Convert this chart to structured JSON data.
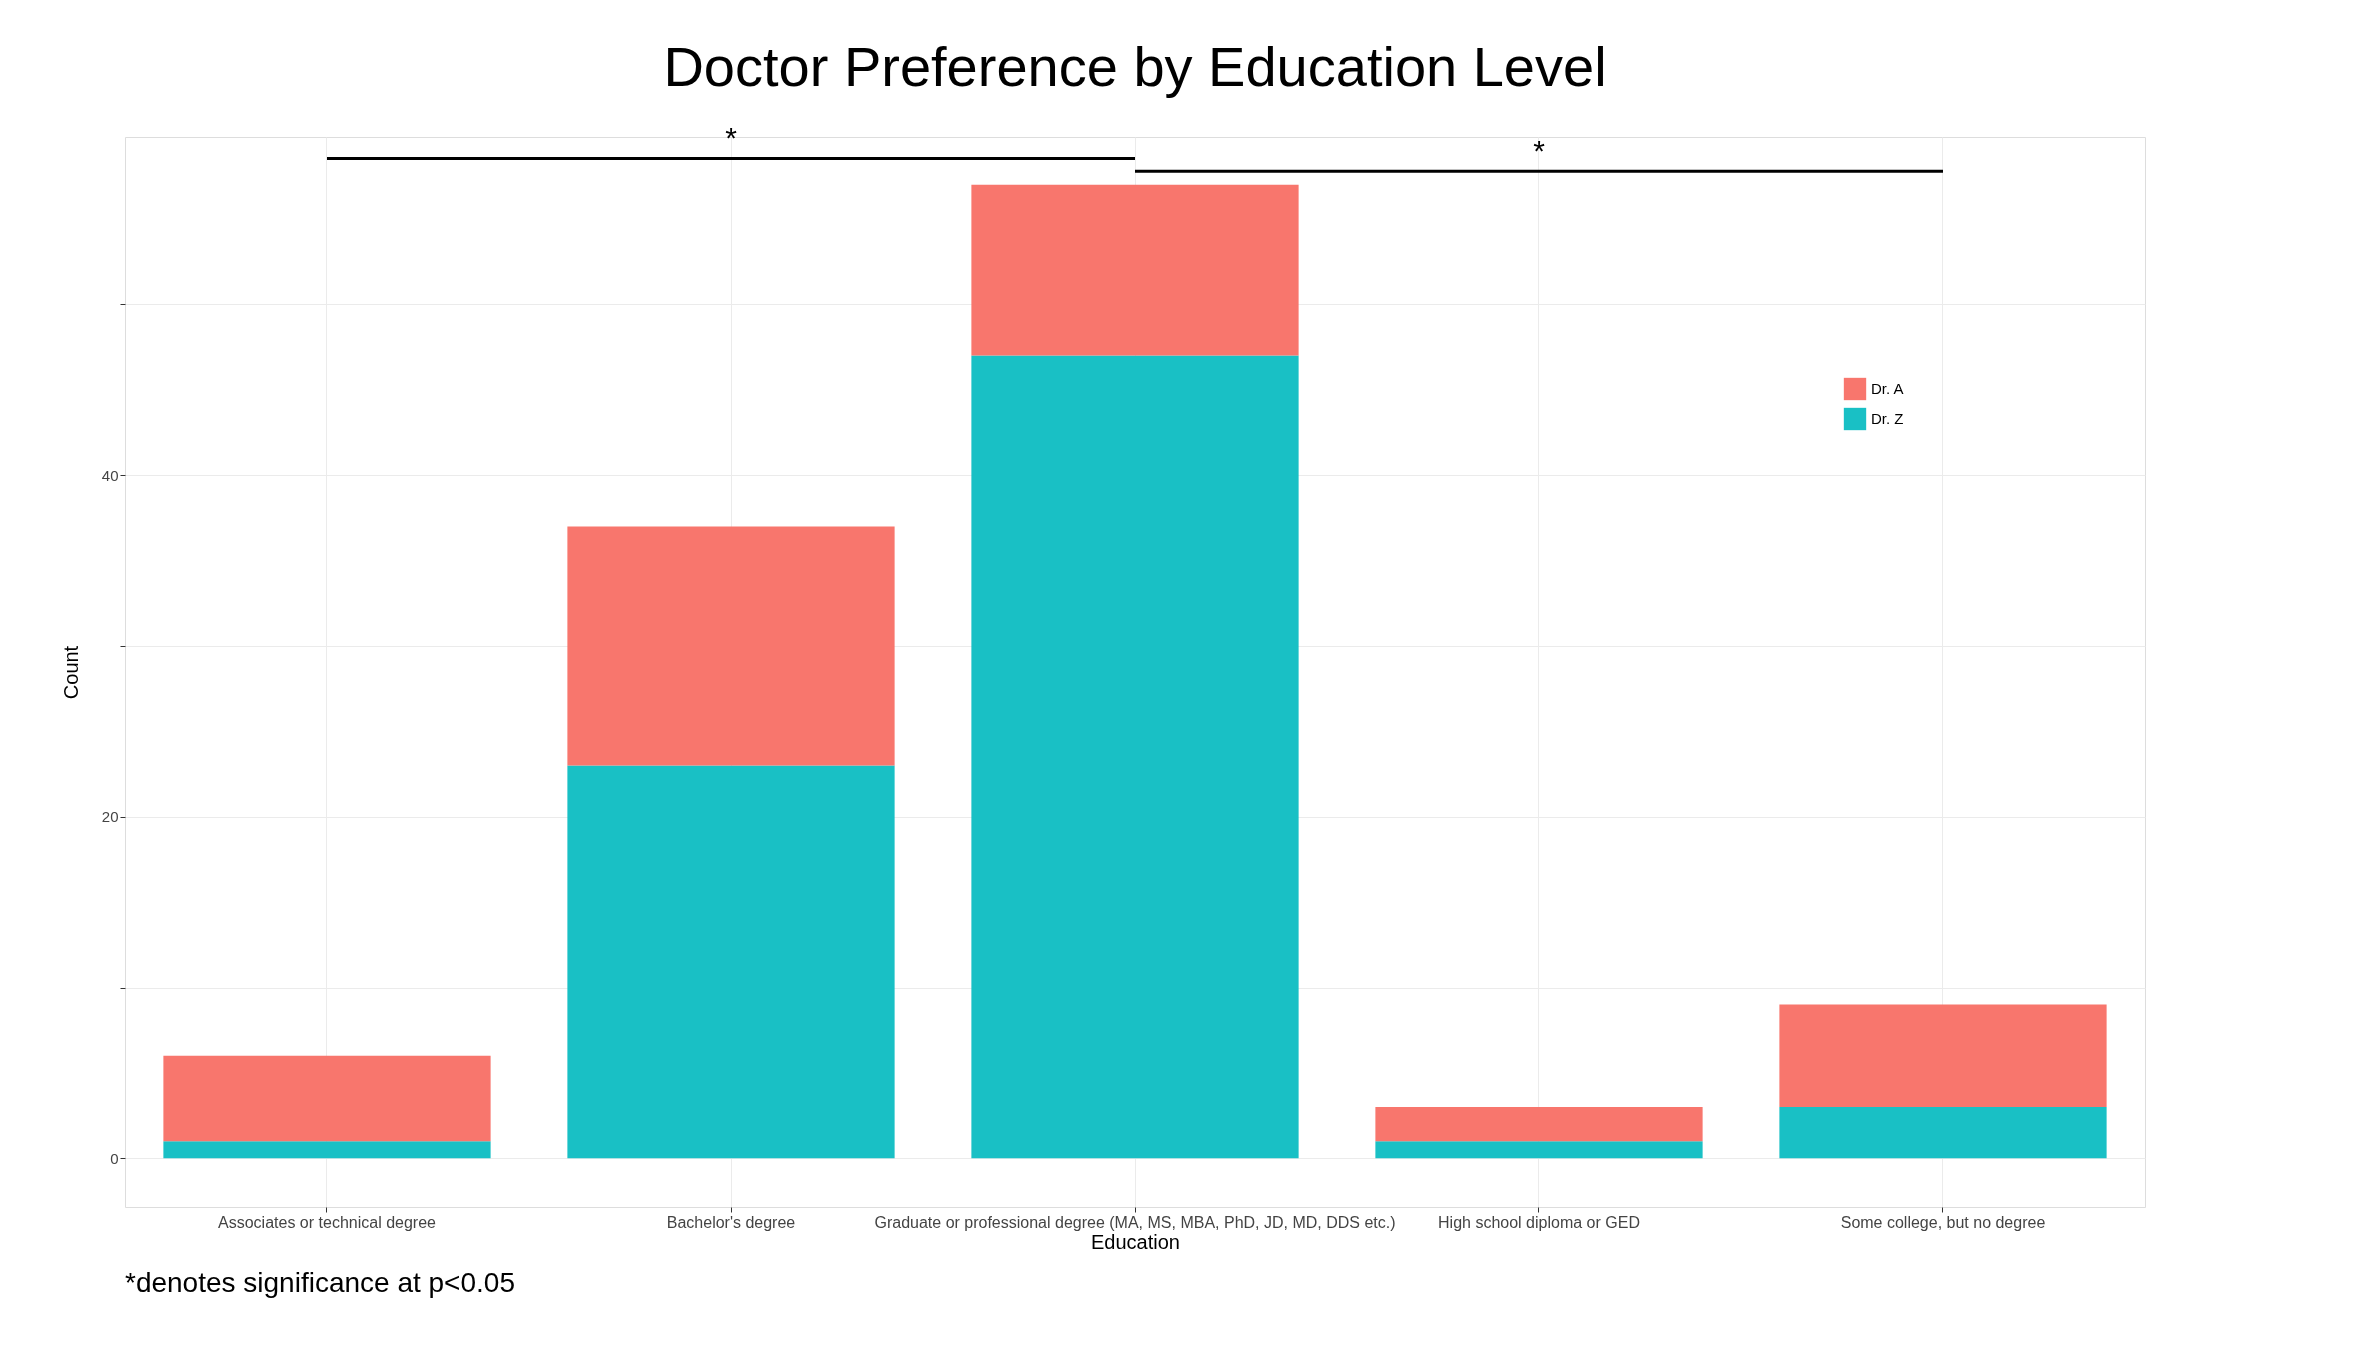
{
  "chart_data": {
    "type": "bar",
    "title": "Doctor Preference by Education Level",
    "xlabel": "Education",
    "ylabel": "Count",
    "categories": [
      "Associates or technical degree",
      "Bachelor's degree",
      "Graduate or professional degree (MA, MS, MBA, PhD, JD, MD, DDS etc.)",
      "High school diploma or GED",
      "Some college, but no degree"
    ],
    "stacked": true,
    "series": [
      {
        "name": "Dr. Z",
        "color": "#19c0c5",
        "values": [
          1,
          23,
          47,
          1,
          3
        ]
      },
      {
        "name": "Dr. A",
        "color": "#f8766d",
        "values": [
          5,
          14,
          10,
          2,
          6
        ]
      }
    ],
    "ylim": [
      -2.85,
      59.8
    ],
    "yticks": [
      0,
      {
        "value": 10,
        "label": null
      },
      20,
      {
        "value": 30,
        "label": null
      },
      40,
      {
        "value": 50,
        "label": null
      }
    ],
    "grid": true,
    "legend": "top right",
    "annotations": [
      "*",
      "*",
      "*denotes significance at p<0.05"
    ]
  }
}
